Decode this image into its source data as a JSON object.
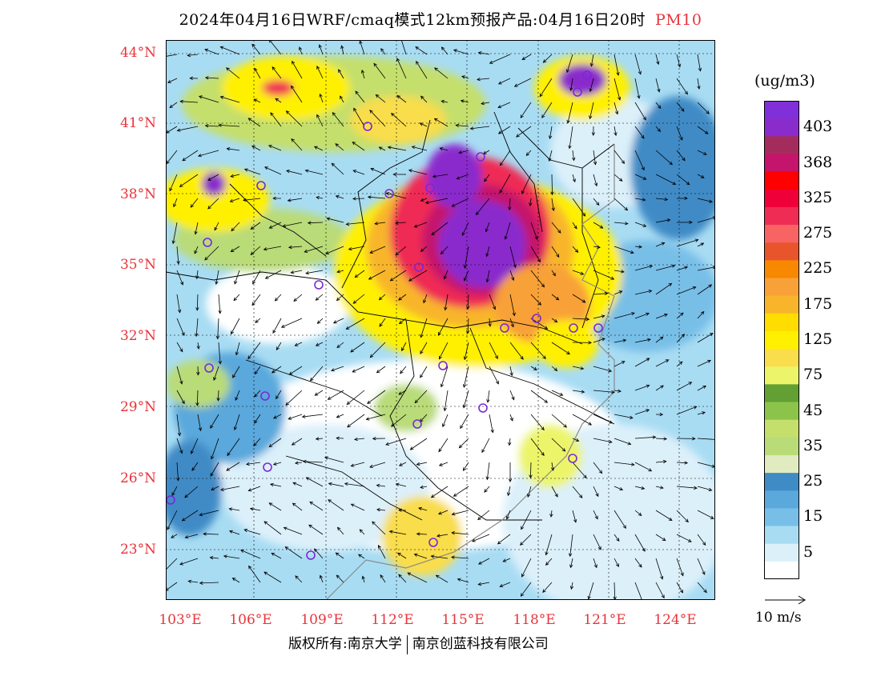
{
  "title": {
    "main": "2024年04月16日WRF/cmaq模式12km预报产品:04月16日20时",
    "variable": "PM10"
  },
  "lat_ticks": [
    "44°N",
    "41°N",
    "38°N",
    "35°N",
    "32°N",
    "29°N",
    "26°N",
    "23°N"
  ],
  "lon_ticks": [
    "103°E",
    "106°E",
    "109°E",
    "112°E",
    "115°E",
    "118°E",
    "121°E",
    "124°E"
  ],
  "colorbar": {
    "units": "(ug/m3)",
    "levels": [
      {
        "label": "",
        "color": "#ffffff"
      },
      {
        "label": "5",
        "color": "#dcf0fa"
      },
      {
        "label": "",
        "color": "#a8dcf3"
      },
      {
        "label": "15",
        "color": "#78bfe8"
      },
      {
        "label": "",
        "color": "#5aa8dc"
      },
      {
        "label": "25",
        "color": "#3f8bc6"
      },
      {
        "label": "",
        "color": "#e0ebc0"
      },
      {
        "label": "35",
        "color": "#b9db78"
      },
      {
        "label": "",
        "color": "#c5df6c"
      },
      {
        "label": "45",
        "color": "#8cc34a"
      },
      {
        "label": "",
        "color": "#62a033"
      },
      {
        "label": "75",
        "color": "#ecf56a"
      },
      {
        "label": "",
        "color": "#f9dd4c"
      },
      {
        "label": "125",
        "color": "#fff000"
      },
      {
        "label": "",
        "color": "#ffdd00"
      },
      {
        "label": "175",
        "color": "#f8b52c"
      },
      {
        "label": "",
        "color": "#f8a138"
      },
      {
        "label": "225",
        "color": "#f88800"
      },
      {
        "label": "",
        "color": "#e8552c"
      },
      {
        "label": "275",
        "color": "#f86464"
      },
      {
        "label": "",
        "color": "#ef2c54"
      },
      {
        "label": "325",
        "color": "#f00038"
      },
      {
        "label": "",
        "color": "#ff0000"
      },
      {
        "label": "368",
        "color": "#c4146c"
      },
      {
        "label": "",
        "color": "#a42c5c"
      },
      {
        "label": "403",
        "color": "#8a2ccc"
      },
      {
        "label": "",
        "color": "#8030d8"
      }
    ]
  },
  "reference_vector": {
    "label": "10 m/s"
  },
  "footer": {
    "left": "版权所有:南京大学",
    "right": "南京创蓝科技有限公司"
  },
  "map_layers": {
    "coast_color": "#8a8a8a",
    "border_color": "#000000",
    "station_color": "#7a28d8",
    "wind_color": "#000000"
  }
}
